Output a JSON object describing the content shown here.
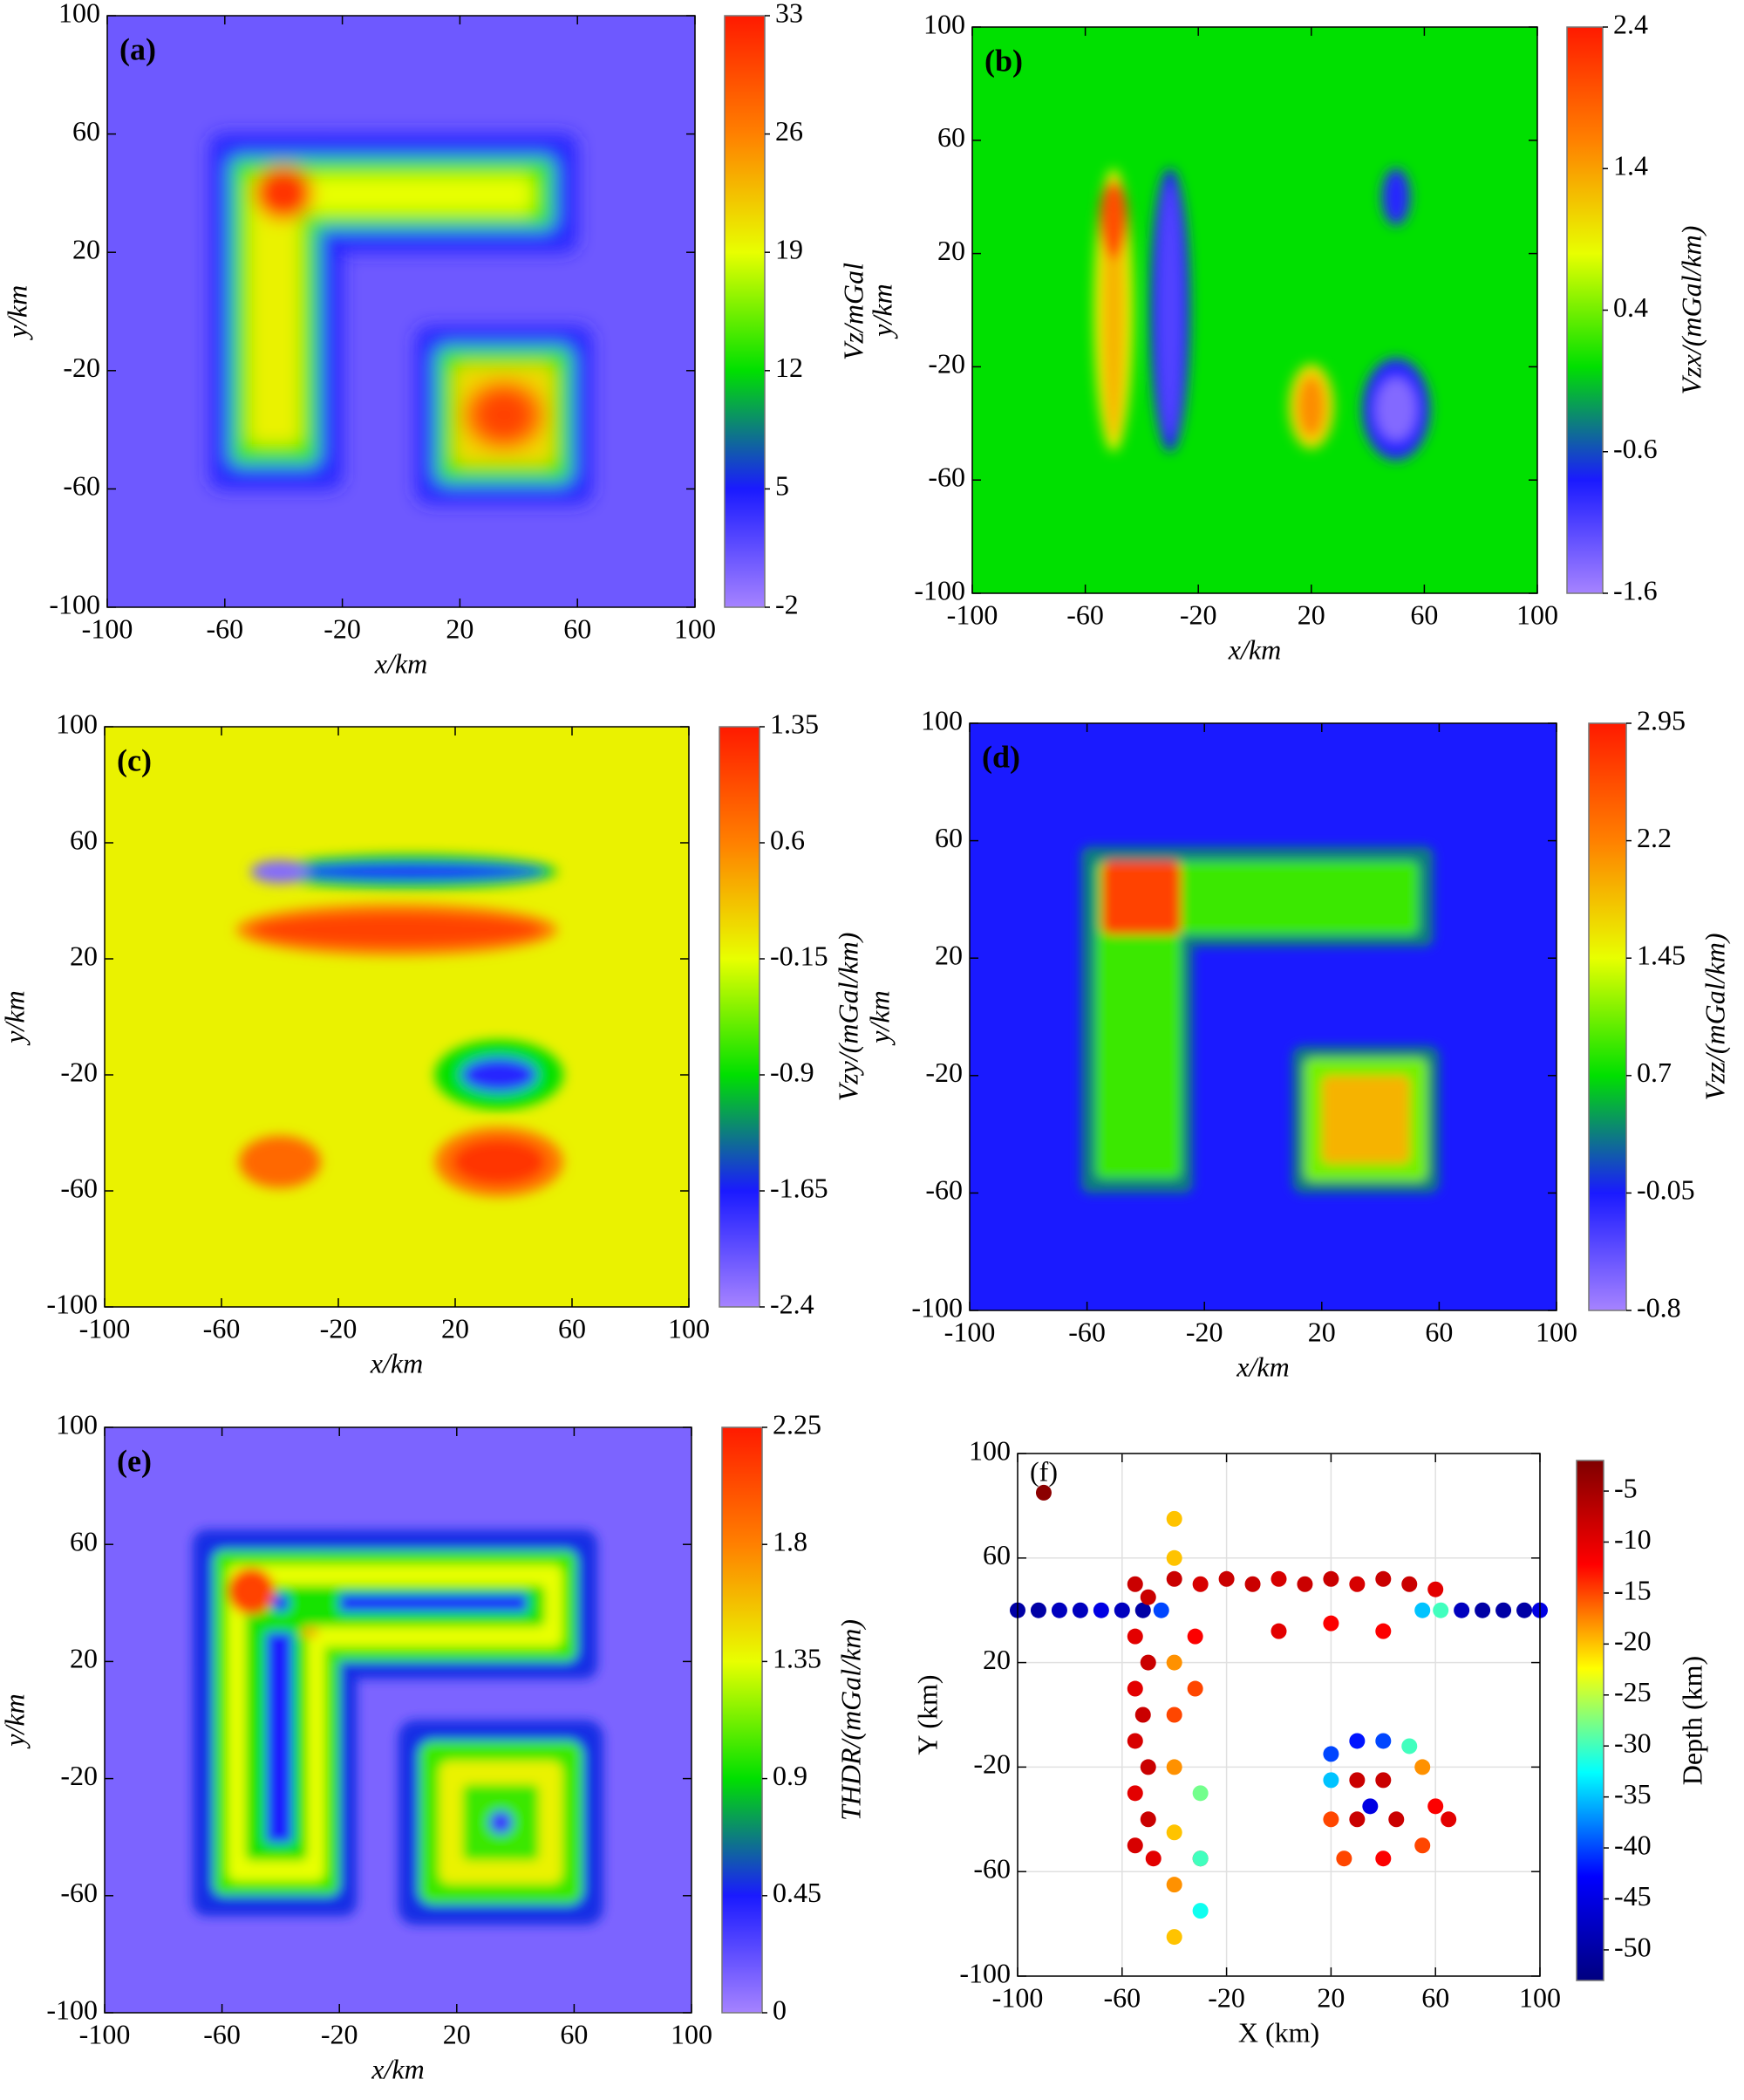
{
  "chart_data": [
    {
      "type": "heatmap",
      "label": "(a)",
      "xlabel": "x/km",
      "ylabel": "y/km",
      "colorbar_label": "Vz/mGal",
      "xlim": [
        -100,
        100
      ],
      "ylim": [
        -100,
        100
      ],
      "xticks": [
        -100,
        -60,
        -20,
        20,
        60,
        100
      ],
      "yticks": [
        -100,
        -60,
        -20,
        20,
        60,
        100
      ],
      "clim": [
        -2,
        33
      ],
      "cticks": [
        -2,
        5,
        12,
        19,
        26,
        33
      ],
      "colormap": [
        "#a683ff",
        "#1a1aff",
        "#00e000",
        "#e8ff00",
        "#ff8000",
        "#ff1a00"
      ]
    },
    {
      "type": "heatmap",
      "label": "(b)",
      "xlabel": "x/km",
      "ylabel": "y/km",
      "colorbar_label": "Vzx/(mGal/km)",
      "xlim": [
        -100,
        100
      ],
      "ylim": [
        -100,
        100
      ],
      "xticks": [
        -100,
        -60,
        -20,
        20,
        60,
        100
      ],
      "yticks": [
        -100,
        -60,
        -20,
        20,
        60,
        100
      ],
      "clim": [
        -1.6,
        2.4
      ],
      "cticks": [
        -1.6,
        -0.6,
        0.4,
        1.4,
        2.4
      ],
      "colormap": [
        "#a683ff",
        "#1a1aff",
        "#00e000",
        "#e8ff00",
        "#ff8000",
        "#ff1a00"
      ]
    },
    {
      "type": "heatmap",
      "label": "(c)",
      "xlabel": "x/km",
      "ylabel": "y/km",
      "colorbar_label": "Vzy/(mGal/km)",
      "xlim": [
        -100,
        100
      ],
      "ylim": [
        -100,
        100
      ],
      "xticks": [
        -100,
        -60,
        -20,
        20,
        60,
        100
      ],
      "yticks": [
        -100,
        -60,
        -20,
        20,
        60,
        100
      ],
      "clim": [
        -2.4,
        1.35
      ],
      "cticks": [
        -2.4,
        -1.65,
        -0.9,
        -0.15,
        0.6,
        1.35
      ],
      "colormap": [
        "#a683ff",
        "#1a1aff",
        "#00e000",
        "#e8ff00",
        "#ff8000",
        "#ff1a00"
      ]
    },
    {
      "type": "heatmap",
      "label": "(d)",
      "xlabel": "x/km",
      "ylabel": "y/km",
      "colorbar_label": "Vzz/(mGal/km)",
      "xlim": [
        -100,
        100
      ],
      "ylim": [
        -100,
        100
      ],
      "xticks": [
        -100,
        -60,
        -20,
        20,
        60,
        100
      ],
      "yticks": [
        -100,
        -60,
        -20,
        20,
        60,
        100
      ],
      "clim": [
        -0.8,
        2.95
      ],
      "cticks": [
        -0.8,
        -0.05,
        0.7,
        1.45,
        2.2,
        2.95
      ],
      "colormap": [
        "#a683ff",
        "#1a1aff",
        "#00e000",
        "#e8ff00",
        "#ff8000",
        "#ff1a00"
      ]
    },
    {
      "type": "heatmap",
      "label": "(e)",
      "xlabel": "x/km",
      "ylabel": "y/km",
      "colorbar_label": "THDR/(mGal/km)",
      "xlim": [
        -100,
        100
      ],
      "ylim": [
        -100,
        100
      ],
      "xticks": [
        -100,
        -60,
        -20,
        20,
        60,
        100
      ],
      "yticks": [
        -100,
        -60,
        -20,
        20,
        60,
        100
      ],
      "clim": [
        0,
        2.25
      ],
      "cticks": [
        0,
        0.45,
        0.9,
        1.35,
        1.8,
        2.25
      ],
      "colormap": [
        "#a683ff",
        "#1a1aff",
        "#00e000",
        "#e8ff00",
        "#ff8000",
        "#ff1a00"
      ]
    },
    {
      "type": "scatter",
      "label": "(f)",
      "xlabel": "X (km)",
      "ylabel": "Y (km)",
      "colorbar_label": "Depth (km)",
      "xlim": [
        -100,
        100
      ],
      "ylim": [
        -100,
        100
      ],
      "xticks": [
        -100,
        -60,
        -20,
        20,
        60,
        100
      ],
      "yticks": [
        -100,
        -60,
        -20,
        20,
        60,
        100
      ],
      "clim": [
        -53,
        -2
      ],
      "cticks": [
        -5,
        -10,
        -15,
        -20,
        -25,
        -30,
        -35,
        -40,
        -45,
        -50
      ],
      "grid": true,
      "colormap": [
        "#00007f",
        "#0000ff",
        "#00ffff",
        "#ffff00",
        "#ff0000",
        "#7f0000"
      ],
      "x": [
        -100,
        -92,
        -84,
        -76,
        -68,
        -60,
        -52,
        -45,
        55,
        62,
        70,
        78,
        86,
        94,
        100,
        -55,
        -50,
        -55,
        -50,
        -55,
        -52,
        -55,
        -50,
        -55,
        -50,
        -55,
        -48,
        -30,
        -40,
        -30,
        -20,
        -10,
        0,
        10,
        20,
        30,
        40,
        50,
        60,
        0,
        20,
        40,
        -40,
        -40,
        -40,
        -40,
        -40,
        -40,
        -40,
        -40,
        -30,
        -30,
        -30,
        -32,
        -32,
        20,
        30,
        40,
        50,
        20,
        20,
        25,
        40,
        55,
        60,
        55,
        30,
        40,
        30,
        45,
        35,
        65,
        -90
      ],
      "y": [
        40,
        40,
        40,
        40,
        40,
        40,
        40,
        40,
        40,
        40,
        40,
        40,
        40,
        40,
        40,
        50,
        45,
        30,
        20,
        10,
        0,
        -10,
        -20,
        -30,
        -40,
        -50,
        -55,
        -55,
        52,
        50,
        52,
        50,
        52,
        50,
        52,
        50,
        52,
        50,
        48,
        32,
        35,
        32,
        75,
        60,
        20,
        0,
        -20,
        -45,
        -65,
        -85,
        -30,
        -55,
        -75,
        30,
        10,
        -15,
        -10,
        -10,
        -12,
        -25,
        -40,
        -55,
        -55,
        -50,
        -35,
        -20,
        -25,
        -25,
        -40,
        -40,
        -35,
        -40,
        85
      ],
      "values": [
        -50,
        -50,
        -48,
        -48,
        -45,
        -48,
        -50,
        -40,
        -35,
        -30,
        -48,
        -50,
        -50,
        -50,
        -45,
        -8,
        -8,
        -10,
        -8,
        -10,
        -8,
        -9,
        -8,
        -10,
        -8,
        -9,
        -10,
        -9,
        -8,
        -9,
        -8,
        -8,
        -9,
        -8,
        -8,
        -9,
        -8,
        -8,
        -10,
        -10,
        -12,
        -12,
        -20,
        -20,
        -18,
        -15,
        -18,
        -20,
        -18,
        -20,
        -28,
        -30,
        -32,
        -12,
        -15,
        -40,
        -42,
        -40,
        -30,
        -35,
        -15,
        -15,
        -12,
        -15,
        -12,
        -18,
        -8,
        -8,
        -8,
        -8,
        -45,
        -10,
        -3
      ]
    }
  ]
}
